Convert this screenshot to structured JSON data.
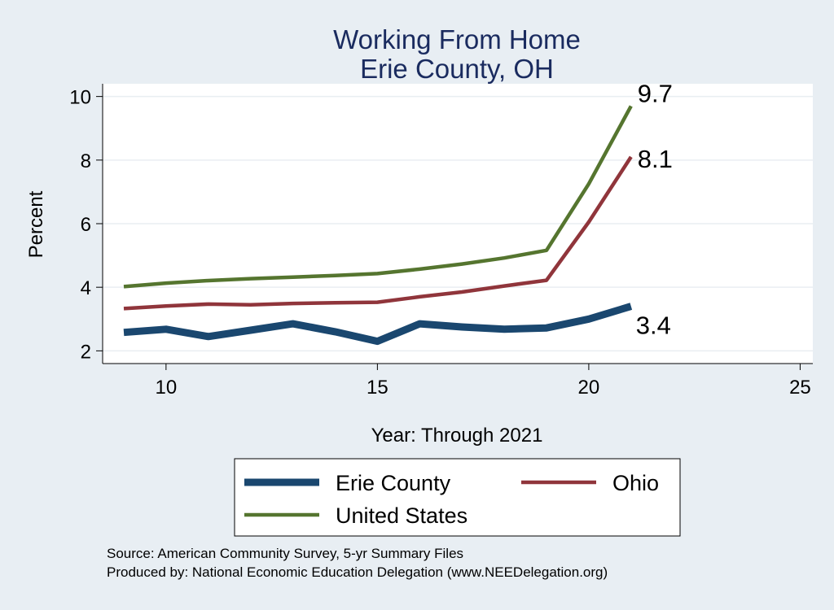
{
  "chart_data": {
    "type": "line",
    "title_lines": [
      "Working From Home",
      "Erie County, OH"
    ],
    "xlabel": "Year: Through 2021",
    "ylabel": "Percent",
    "xlim": [
      8.5,
      25.3
    ],
    "ylim": [
      1.6,
      10.4
    ],
    "xticks": [
      10,
      15,
      20,
      25
    ],
    "yticks": [
      2,
      4,
      6,
      8,
      10
    ],
    "grid": true,
    "legend_position": "bottom",
    "series": [
      {
        "name": "Erie County",
        "color": "#1a476f",
        "x": [
          9,
          10,
          11,
          12,
          13,
          14,
          15,
          16,
          17,
          18,
          19,
          20,
          21
        ],
        "values": [
          2.58,
          2.68,
          2.45,
          2.65,
          2.85,
          2.6,
          2.3,
          2.85,
          2.75,
          2.68,
          2.72,
          3.0,
          3.4
        ],
        "end_label": "3.4"
      },
      {
        "name": "Ohio",
        "color": "#90353b",
        "x": [
          9,
          10,
          11,
          12,
          13,
          14,
          15,
          16,
          17,
          18,
          19,
          20,
          21
        ],
        "values": [
          3.33,
          3.41,
          3.47,
          3.45,
          3.49,
          3.51,
          3.53,
          3.7,
          3.85,
          4.04,
          4.22,
          6.05,
          8.1
        ],
        "end_label": "8.1"
      },
      {
        "name": "United States",
        "color": "#55752f",
        "x": [
          9,
          10,
          11,
          12,
          13,
          14,
          15,
          16,
          17,
          18,
          19,
          20,
          21
        ],
        "values": [
          4.02,
          4.13,
          4.21,
          4.27,
          4.32,
          4.37,
          4.43,
          4.57,
          4.73,
          4.92,
          5.16,
          7.25,
          9.7
        ],
        "end_label": "9.7"
      }
    ],
    "source_lines": [
      "Source: American Community Survey, 5-yr Summary Files",
      "Produced by: National Economic Education Delegation (www.NEEDelegation.org)"
    ]
  }
}
